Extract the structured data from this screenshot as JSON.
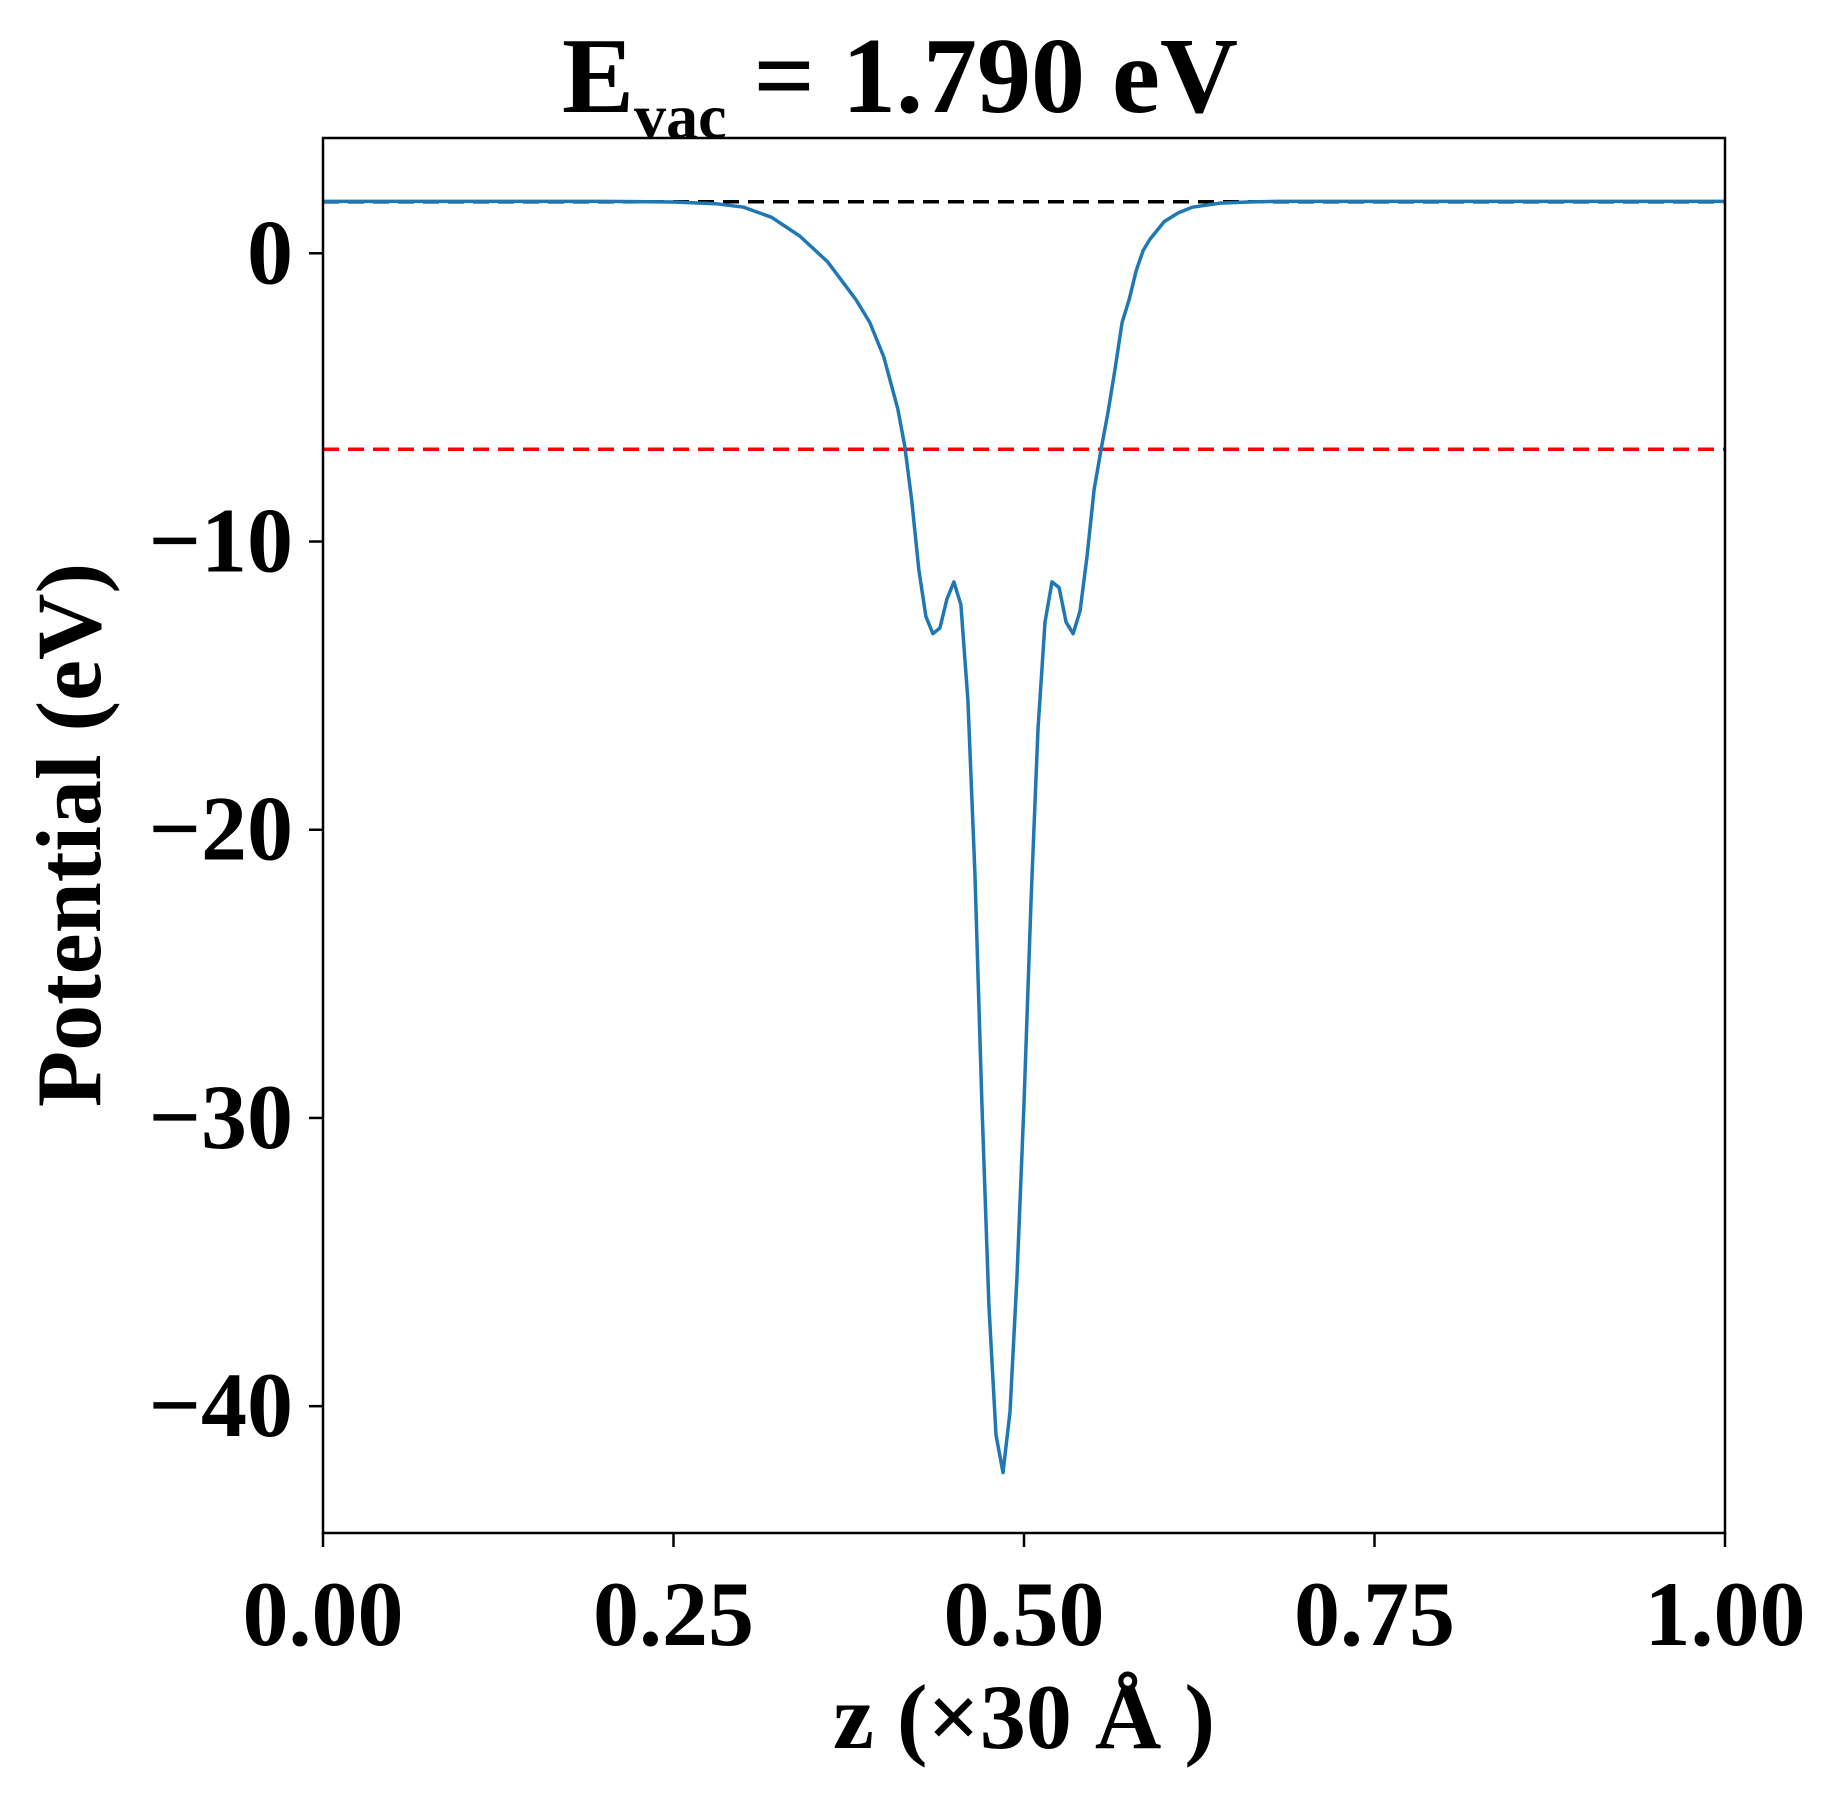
{
  "chart_data": {
    "type": "line",
    "title_main": "E",
    "title_sub": "vac",
    "title_rest": " = 1.790 eV",
    "xlabel": "z (×30 Å )",
    "ylabel": "Potential (eV)",
    "xlim": [
      0,
      1
    ],
    "ylim": [
      -44.4,
      4.0
    ],
    "xticks": [
      0.0,
      0.25,
      0.5,
      0.75,
      1.0
    ],
    "xtick_labels": [
      "0.00",
      "0.25",
      "0.50",
      "0.75",
      "1.00"
    ],
    "yticks": [
      0,
      -10,
      -20,
      -30,
      -40
    ],
    "ytick_labels": [
      "0",
      "−10",
      "−20",
      "−30",
      "−40"
    ],
    "grid": false,
    "reference_lines": [
      {
        "y": 1.79,
        "color": "#000000",
        "style": "dashed"
      },
      {
        "y": -6.8,
        "color": "#ff0000",
        "style": "dashed"
      }
    ],
    "series": [
      {
        "color": "#1f77b4",
        "x": [
          0.0,
          0.05,
          0.1,
          0.15,
          0.2,
          0.25,
          0.28,
          0.3,
          0.32,
          0.34,
          0.36,
          0.38,
          0.39,
          0.4,
          0.41,
          0.415,
          0.42,
          0.425,
          0.43,
          0.435,
          0.44,
          0.445,
          0.45,
          0.455,
          0.46,
          0.465,
          0.47,
          0.475,
          0.48,
          0.485,
          0.49,
          0.495,
          0.5,
          0.505,
          0.51,
          0.515,
          0.52,
          0.525,
          0.53,
          0.535,
          0.54,
          0.545,
          0.55,
          0.555,
          0.56,
          0.565,
          0.57,
          0.575,
          0.58,
          0.585,
          0.59,
          0.6,
          0.61,
          0.62,
          0.64,
          0.66,
          0.68,
          0.7,
          0.72,
          0.75,
          0.8,
          0.85,
          0.9,
          0.95,
          1.0
        ],
        "y": [
          1.8,
          1.8,
          1.8,
          1.8,
          1.8,
          1.78,
          1.72,
          1.6,
          1.25,
          0.6,
          -0.3,
          -1.6,
          -2.4,
          -3.6,
          -5.4,
          -6.7,
          -8.6,
          -11.0,
          -12.6,
          -13.2,
          -13.0,
          -12.0,
          -11.4,
          -12.2,
          -15.5,
          -21.5,
          -29.5,
          -36.5,
          -41.0,
          -42.3,
          -40.2,
          -35.5,
          -29.5,
          -22.5,
          -16.5,
          -12.8,
          -11.4,
          -11.6,
          -12.8,
          -13.2,
          -12.4,
          -10.5,
          -8.2,
          -6.8,
          -5.5,
          -4.0,
          -2.4,
          -1.6,
          -0.6,
          0.1,
          0.5,
          1.1,
          1.4,
          1.6,
          1.74,
          1.78,
          1.8,
          1.8,
          1.8,
          1.8,
          1.8,
          1.8,
          1.8,
          1.8,
          1.8
        ]
      }
    ]
  }
}
